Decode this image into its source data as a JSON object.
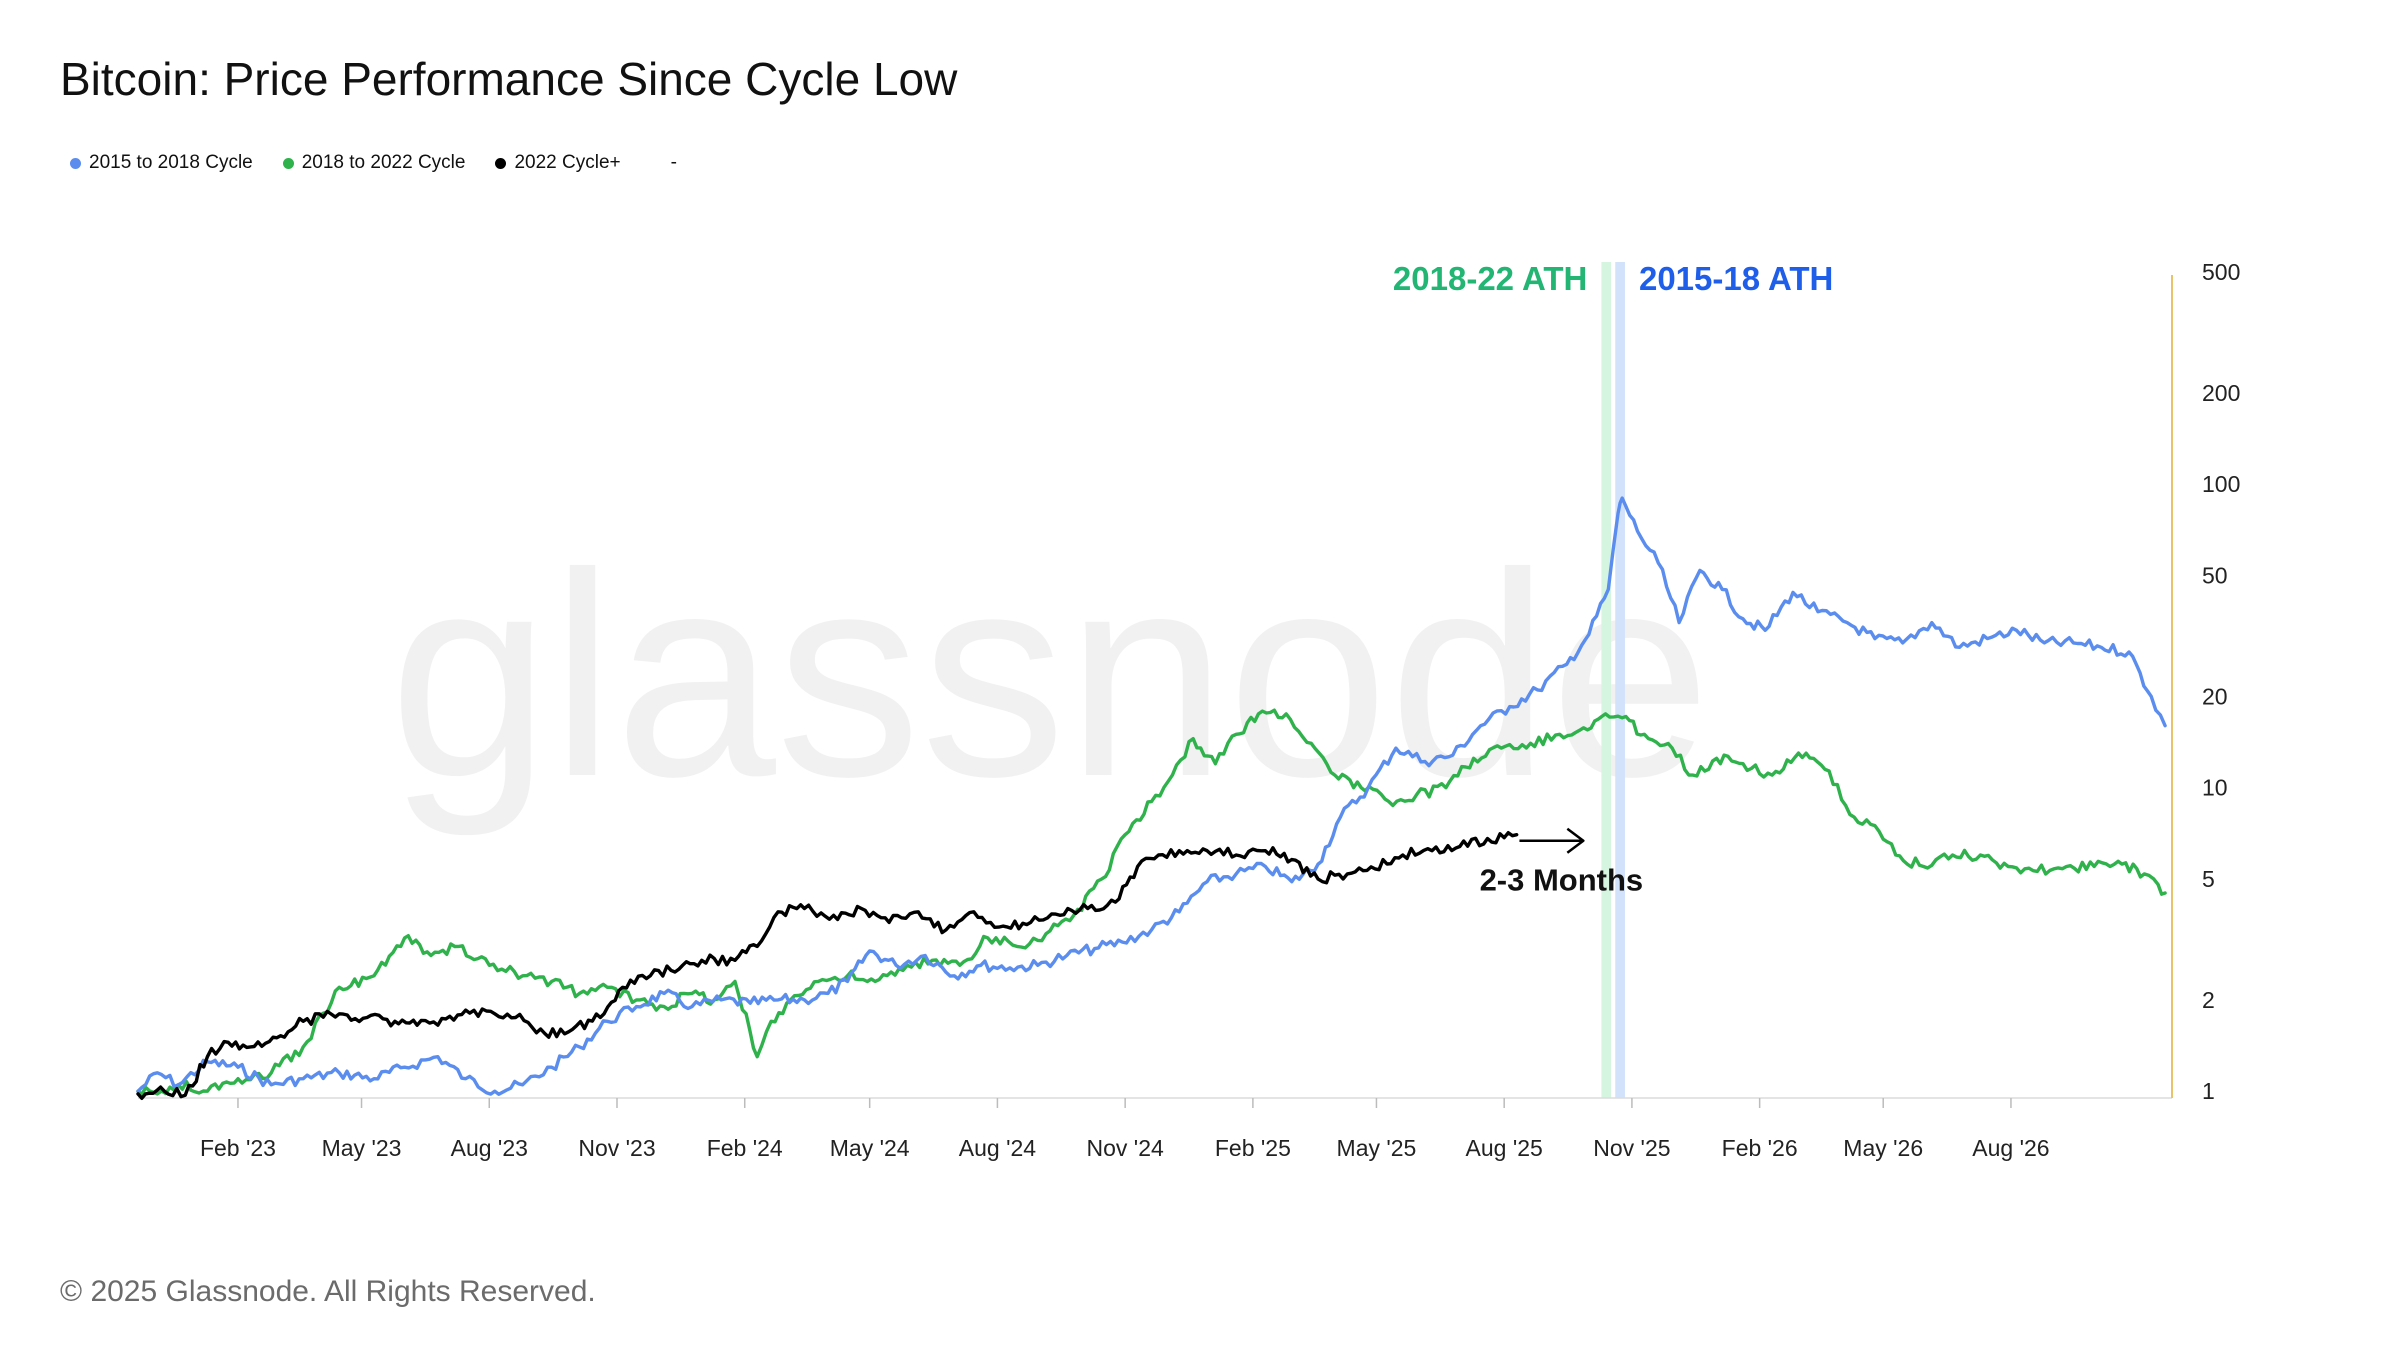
{
  "title": "Bitcoin: Price Performance Since Cycle Low",
  "footer": "© 2025 Glassnode. All Rights Reserved.",
  "watermark": "glassnode",
  "legend": {
    "items": [
      {
        "label": "2015 to 2018 Cycle",
        "color": "#5b8def"
      },
      {
        "label": "2018 to 2022 Cycle",
        "color": "#2fb24c"
      },
      {
        "label": "2022 Cycle+",
        "color": "#000000"
      }
    ],
    "extra": "-"
  },
  "chart_data": {
    "type": "line",
    "title": "Bitcoin: Price Performance Since Cycle Low",
    "xlabel": "",
    "ylabel": "",
    "y_scale": "log",
    "ylim": [
      0.95,
      500
    ],
    "xlim": [
      "2022-11-21",
      "2026-11-25"
    ],
    "x_ticks": [
      {
        "date": "2023-02-01",
        "label": "Feb '23"
      },
      {
        "date": "2023-05-01",
        "label": "May '23"
      },
      {
        "date": "2023-08-01",
        "label": "Aug '23"
      },
      {
        "date": "2023-11-01",
        "label": "Nov '23"
      },
      {
        "date": "2024-02-01",
        "label": "Feb '24"
      },
      {
        "date": "2024-05-01",
        "label": "May '24"
      },
      {
        "date": "2024-08-01",
        "label": "Aug '24"
      },
      {
        "date": "2024-11-01",
        "label": "Nov '24"
      },
      {
        "date": "2025-02-01",
        "label": "Feb '25"
      },
      {
        "date": "2025-05-01",
        "label": "May '25"
      },
      {
        "date": "2025-08-01",
        "label": "Aug '25"
      },
      {
        "date": "2025-11-01",
        "label": "Nov '25"
      },
      {
        "date": "2026-02-01",
        "label": "Feb '26"
      },
      {
        "date": "2026-05-01",
        "label": "May '26"
      },
      {
        "date": "2026-08-01",
        "label": "Aug '26"
      }
    ],
    "y_ticks": [
      {
        "value": 1,
        "label": "1"
      },
      {
        "value": 2,
        "label": "2"
      },
      {
        "value": 5,
        "label": "5"
      },
      {
        "value": 10,
        "label": "10"
      },
      {
        "value": 20,
        "label": "20"
      },
      {
        "value": 50,
        "label": "50"
      },
      {
        "value": 100,
        "label": "100"
      },
      {
        "value": 200,
        "label": "200"
      },
      {
        "value": 500,
        "label": "500"
      }
    ],
    "grid": false,
    "legend_position": "top-left",
    "bands": [
      {
        "label": "2018-22 ATH",
        "start": "2025-10-10",
        "end": "2025-10-17",
        "color": "#d6f5e0",
        "label_color": "#22b573",
        "label_side": "left"
      },
      {
        "label": "2015-18 ATH",
        "start": "2025-10-20",
        "end": "2025-10-27",
        "color": "#d3e2fb",
        "label_color": "#1e5ee8",
        "label_side": "right"
      }
    ],
    "annotation": {
      "text": "2-3 Months",
      "arrow_from": "2025-08-12",
      "arrow_to": "2025-09-27",
      "arrow_y": 7.0
    },
    "series": [
      {
        "name": "2015 to 2018 Cycle",
        "color": "#5b8def",
        "x": [
          "2022-11-21",
          "2022-12-05",
          "2022-12-20",
          "2023-01-10",
          "2023-02-01",
          "2023-02-25",
          "2023-03-20",
          "2023-04-15",
          "2023-05-10",
          "2023-06-01",
          "2023-06-25",
          "2023-07-15",
          "2023-08-05",
          "2023-08-25",
          "2023-09-15",
          "2023-10-05",
          "2023-10-25",
          "2023-11-15",
          "2023-12-05",
          "2023-12-25",
          "2024-01-15",
          "2024-02-05",
          "2024-02-25",
          "2024-03-15",
          "2024-04-01",
          "2024-04-15",
          "2024-05-01",
          "2024-05-20",
          "2024-06-10",
          "2024-07-01",
          "2024-07-20",
          "2024-08-10",
          "2024-08-30",
          "2024-09-20",
          "2024-10-10",
          "2024-10-30",
          "2024-11-20",
          "2024-12-10",
          "2024-12-30",
          "2025-01-20",
          "2025-02-10",
          "2025-03-01",
          "2025-03-20",
          "2025-04-05",
          "2025-04-25",
          "2025-05-15",
          "2025-06-05",
          "2025-06-25",
          "2025-07-15",
          "2025-08-05",
          "2025-08-25",
          "2025-09-15",
          "2025-10-01",
          "2025-10-15",
          "2025-10-22",
          "2025-10-25",
          "2025-11-05",
          "2025-11-20",
          "2025-12-05",
          "2025-12-20",
          "2026-01-05",
          "2026-01-20",
          "2026-02-05",
          "2026-02-25",
          "2026-03-15",
          "2026-04-05",
          "2026-04-25",
          "2026-05-15",
          "2026-06-05",
          "2026-06-25",
          "2026-07-15",
          "2026-08-05",
          "2026-08-25",
          "2026-09-15",
          "2026-10-05",
          "2026-10-25",
          "2026-11-10",
          "2026-11-20"
        ],
        "values": [
          1.0,
          1.15,
          1.05,
          1.25,
          1.2,
          1.05,
          1.1,
          1.15,
          1.1,
          1.2,
          1.3,
          1.1,
          1.0,
          1.05,
          1.2,
          1.4,
          1.7,
          1.9,
          2.1,
          1.9,
          2.0,
          1.95,
          2.0,
          2.0,
          2.1,
          2.3,
          2.9,
          2.6,
          2.8,
          2.4,
          2.6,
          2.55,
          2.6,
          2.8,
          2.95,
          3.1,
          3.4,
          3.9,
          4.9,
          5.2,
          5.5,
          4.9,
          5.6,
          8.0,
          10.0,
          13.5,
          12.2,
          12.8,
          16.0,
          18.5,
          21.0,
          25.5,
          32.0,
          45.0,
          80.0,
          90.0,
          70.0,
          55.0,
          35.0,
          52.0,
          45.0,
          36.0,
          33.0,
          44.0,
          38.0,
          35.0,
          31.0,
          30.0,
          35.0,
          29.0,
          31.0,
          33.0,
          30.0,
          30.0,
          29.0,
          28.0,
          20.0,
          16.0
        ]
      },
      {
        "name": "2018 to 2022 Cycle",
        "color": "#2fb24c",
        "x": [
          "2022-11-21",
          "2022-12-05",
          "2022-12-20",
          "2023-01-10",
          "2023-02-01",
          "2023-02-25",
          "2023-03-20",
          "2023-04-15",
          "2023-05-10",
          "2023-06-01",
          "2023-06-20",
          "2023-07-10",
          "2023-08-01",
          "2023-08-25",
          "2023-09-15",
          "2023-10-05",
          "2023-10-25",
          "2023-11-15",
          "2023-12-05",
          "2023-12-25",
          "2024-01-10",
          "2024-01-25",
          "2024-02-10",
          "2024-02-20",
          "2024-03-05",
          "2024-03-25",
          "2024-04-15",
          "2024-05-05",
          "2024-05-25",
          "2024-06-15",
          "2024-07-05",
          "2024-07-25",
          "2024-08-15",
          "2024-09-05",
          "2024-09-25",
          "2024-10-15",
          "2024-11-01",
          "2024-11-20",
          "2024-12-05",
          "2024-12-20",
          "2025-01-05",
          "2025-01-20",
          "2025-02-05",
          "2025-02-25",
          "2025-03-15",
          "2025-04-01",
          "2025-04-20",
          "2025-05-10",
          "2025-05-30",
          "2025-06-20",
          "2025-07-10",
          "2025-07-30",
          "2025-08-20",
          "2025-09-10",
          "2025-09-30",
          "2025-10-13",
          "2025-10-25",
          "2025-11-10",
          "2025-11-30",
          "2025-12-15",
          "2026-01-01",
          "2026-01-20",
          "2026-02-10",
          "2026-03-01",
          "2026-03-20",
          "2026-04-10",
          "2026-04-25",
          "2026-05-10",
          "2026-05-30",
          "2026-06-20",
          "2026-07-10",
          "2026-07-30",
          "2026-08-20",
          "2026-09-10",
          "2026-09-30",
          "2026-10-20",
          "2026-11-05",
          "2026-11-15",
          "2026-11-20"
        ],
        "values": [
          1.0,
          0.98,
          1.05,
          1.0,
          1.1,
          1.15,
          1.4,
          2.2,
          2.4,
          3.2,
          2.8,
          3.0,
          2.6,
          2.4,
          2.3,
          2.1,
          2.2,
          2.0,
          1.9,
          2.1,
          2.0,
          2.3,
          1.3,
          1.7,
          2.0,
          2.3,
          2.4,
          2.3,
          2.5,
          2.7,
          2.6,
          3.2,
          3.0,
          3.3,
          3.8,
          5.0,
          7.0,
          9.0,
          11.0,
          14.5,
          12.0,
          15.0,
          17.5,
          17.5,
          14.0,
          11.0,
          10.0,
          9.0,
          9.5,
          10.0,
          12.5,
          13.5,
          14.0,
          15.0,
          15.5,
          17.5,
          17.0,
          15.0,
          13.5,
          11.0,
          12.5,
          12.0,
          11.0,
          13.0,
          11.5,
          8.0,
          7.5,
          6.0,
          5.5,
          6.0,
          6.0,
          5.5,
          5.3,
          5.5,
          5.5,
          5.6,
          5.2,
          4.8,
          4.5
        ]
      },
      {
        "name": "2022 Cycle+",
        "color": "#000000",
        "x": [
          "2022-11-21",
          "2022-12-10",
          "2022-12-25",
          "2023-01-10",
          "2023-01-25",
          "2023-02-10",
          "2023-03-01",
          "2023-03-20",
          "2023-04-15",
          "2023-05-05",
          "2023-05-25",
          "2023-06-10",
          "2023-06-25",
          "2023-07-15",
          "2023-08-05",
          "2023-08-20",
          "2023-09-10",
          "2023-09-30",
          "2023-10-20",
          "2023-11-05",
          "2023-11-25",
          "2023-12-10",
          "2024-01-01",
          "2024-01-25",
          "2024-02-10",
          "2024-02-25",
          "2024-03-15",
          "2024-04-05",
          "2024-04-25",
          "2024-05-15",
          "2024-06-05",
          "2024-06-25",
          "2024-07-15",
          "2024-08-05",
          "2024-08-25",
          "2024-09-15",
          "2024-10-05",
          "2024-10-25",
          "2024-11-10",
          "2024-11-25",
          "2024-12-10",
          "2024-12-30",
          "2025-01-20",
          "2025-02-10",
          "2025-03-01",
          "2025-03-20",
          "2025-04-10",
          "2025-04-30",
          "2025-05-20",
          "2025-06-10",
          "2025-06-30",
          "2025-07-20",
          "2025-08-10"
        ],
        "values": [
          0.98,
          1.0,
          0.97,
          1.3,
          1.45,
          1.4,
          1.5,
          1.7,
          1.8,
          1.75,
          1.7,
          1.65,
          1.65,
          1.85,
          1.8,
          1.75,
          1.55,
          1.6,
          1.75,
          2.2,
          2.4,
          2.5,
          2.7,
          2.7,
          3.0,
          3.9,
          4.0,
          3.8,
          4.0,
          3.6,
          3.9,
          3.4,
          3.9,
          3.5,
          3.6,
          3.8,
          4.0,
          4.2,
          5.5,
          6.0,
          6.2,
          6.2,
          6.0,
          6.2,
          5.8,
          5.0,
          5.2,
          5.4,
          6.0,
          6.2,
          6.4,
          6.8,
          7.0
        ]
      }
    ]
  }
}
